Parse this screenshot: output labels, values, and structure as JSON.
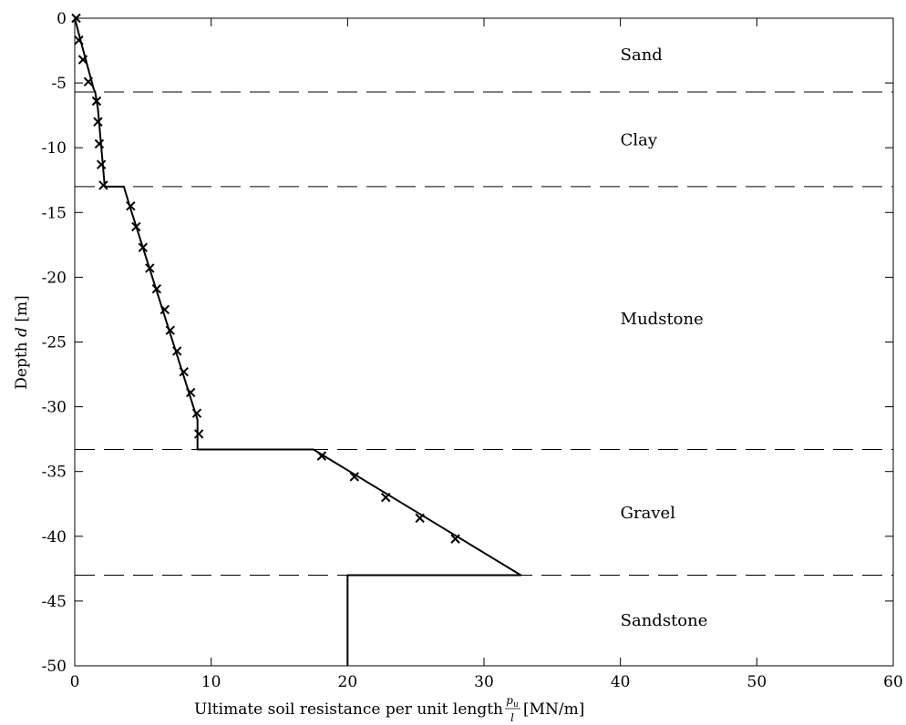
{
  "chart_data": {
    "type": "line",
    "xlim": [
      0,
      60
    ],
    "ylim": [
      -50,
      0
    ],
    "xticks": [
      0,
      10,
      20,
      30,
      40,
      50,
      60
    ],
    "yticks": [
      0,
      -5,
      -10,
      -15,
      -20,
      -25,
      -30,
      -35,
      -40,
      -45,
      -50
    ],
    "xticklabels": [
      "0",
      "10",
      "20",
      "30",
      "40",
      "50",
      "60"
    ],
    "yticklabels": [
      "0",
      "-5",
      "-10",
      "-15",
      "-20",
      "-25",
      "-30",
      "-35",
      "-40",
      "-45",
      "-50"
    ],
    "xlabel": {
      "prefix": "Ultimate soil resistance per unit length ",
      "frac_num": "p",
      "frac_num_sub": "u",
      "frac_den": "l",
      "suffix": " [MN/m]"
    },
    "ylabel": {
      "prefix": "Depth ",
      "var": "d",
      "suffix": " [m]"
    },
    "grid": false,
    "series": [
      {
        "style": "solid",
        "color": "#000000",
        "x": [
          0,
          0.5,
          1.4,
          1.5,
          1.7,
          2.2,
          3.6,
          4.0,
          9.0,
          9.0,
          17.5,
          32.7,
          20.0,
          20.0
        ],
        "y": [
          0,
          -2,
          -5.5,
          -5.7,
          -7,
          -13,
          -13,
          -14.4,
          -31,
          -33.3,
          -33.3,
          -43,
          -43,
          -50
        ]
      },
      {
        "style": "markers",
        "marker": "x",
        "color": "#000000",
        "x": [
          0.1,
          0.3,
          0.6,
          1.0,
          1.6,
          1.7,
          1.8,
          1.95,
          2.1,
          4.1,
          4.5,
          5.0,
          5.5,
          6.0,
          6.6,
          7.0,
          7.5,
          8.0,
          8.5,
          8.95,
          9.1,
          18.1,
          20.5,
          22.8,
          25.3,
          27.9
        ],
        "y": [
          0,
          -1.7,
          -3.2,
          -4.9,
          -6.4,
          -8.0,
          -9.7,
          -11.3,
          -12.9,
          -14.5,
          -16.1,
          -17.7,
          -19.3,
          -20.9,
          -22.5,
          -24.1,
          -25.7,
          -27.3,
          -28.9,
          -30.5,
          -32.1,
          -33.8,
          -35.4,
          -37.0,
          -38.6,
          -40.2
        ]
      }
    ],
    "layer_boundaries": [
      -5.7,
      -13,
      -33.3,
      -43
    ],
    "annotations": [
      {
        "text": "Sand",
        "x": 40,
        "y": -2.8
      },
      {
        "text": "Clay",
        "x": 40,
        "y": -9.4
      },
      {
        "text": "Mudstone",
        "x": 40,
        "y": -23.2
      },
      {
        "text": "Gravel",
        "x": 40,
        "y": -38.2
      },
      {
        "text": "Sandstone",
        "x": 40,
        "y": -46.5
      }
    ]
  }
}
